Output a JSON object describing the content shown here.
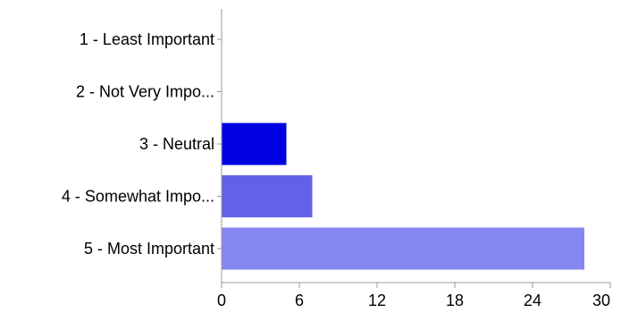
{
  "chart_data": {
    "type": "bar",
    "orientation": "horizontal",
    "title": "",
    "xlabel": "",
    "ylabel": "",
    "categories": [
      "1 - Least Important",
      "2 - Not Very Impo...",
      "3 - Neutral",
      "4 - Somewhat Impo...",
      "5 - Most Important"
    ],
    "values": [
      0,
      0,
      5,
      7,
      28
    ],
    "bar_colors": [
      "#0000e0",
      "#3333e6",
      "#0000e0",
      "#6161ea",
      "#8686f0"
    ],
    "xlim": [
      0,
      30
    ],
    "xticks": [
      0,
      6,
      12,
      18,
      24,
      30
    ],
    "grid": false,
    "legend": "none",
    "axis_color": "#999999"
  }
}
